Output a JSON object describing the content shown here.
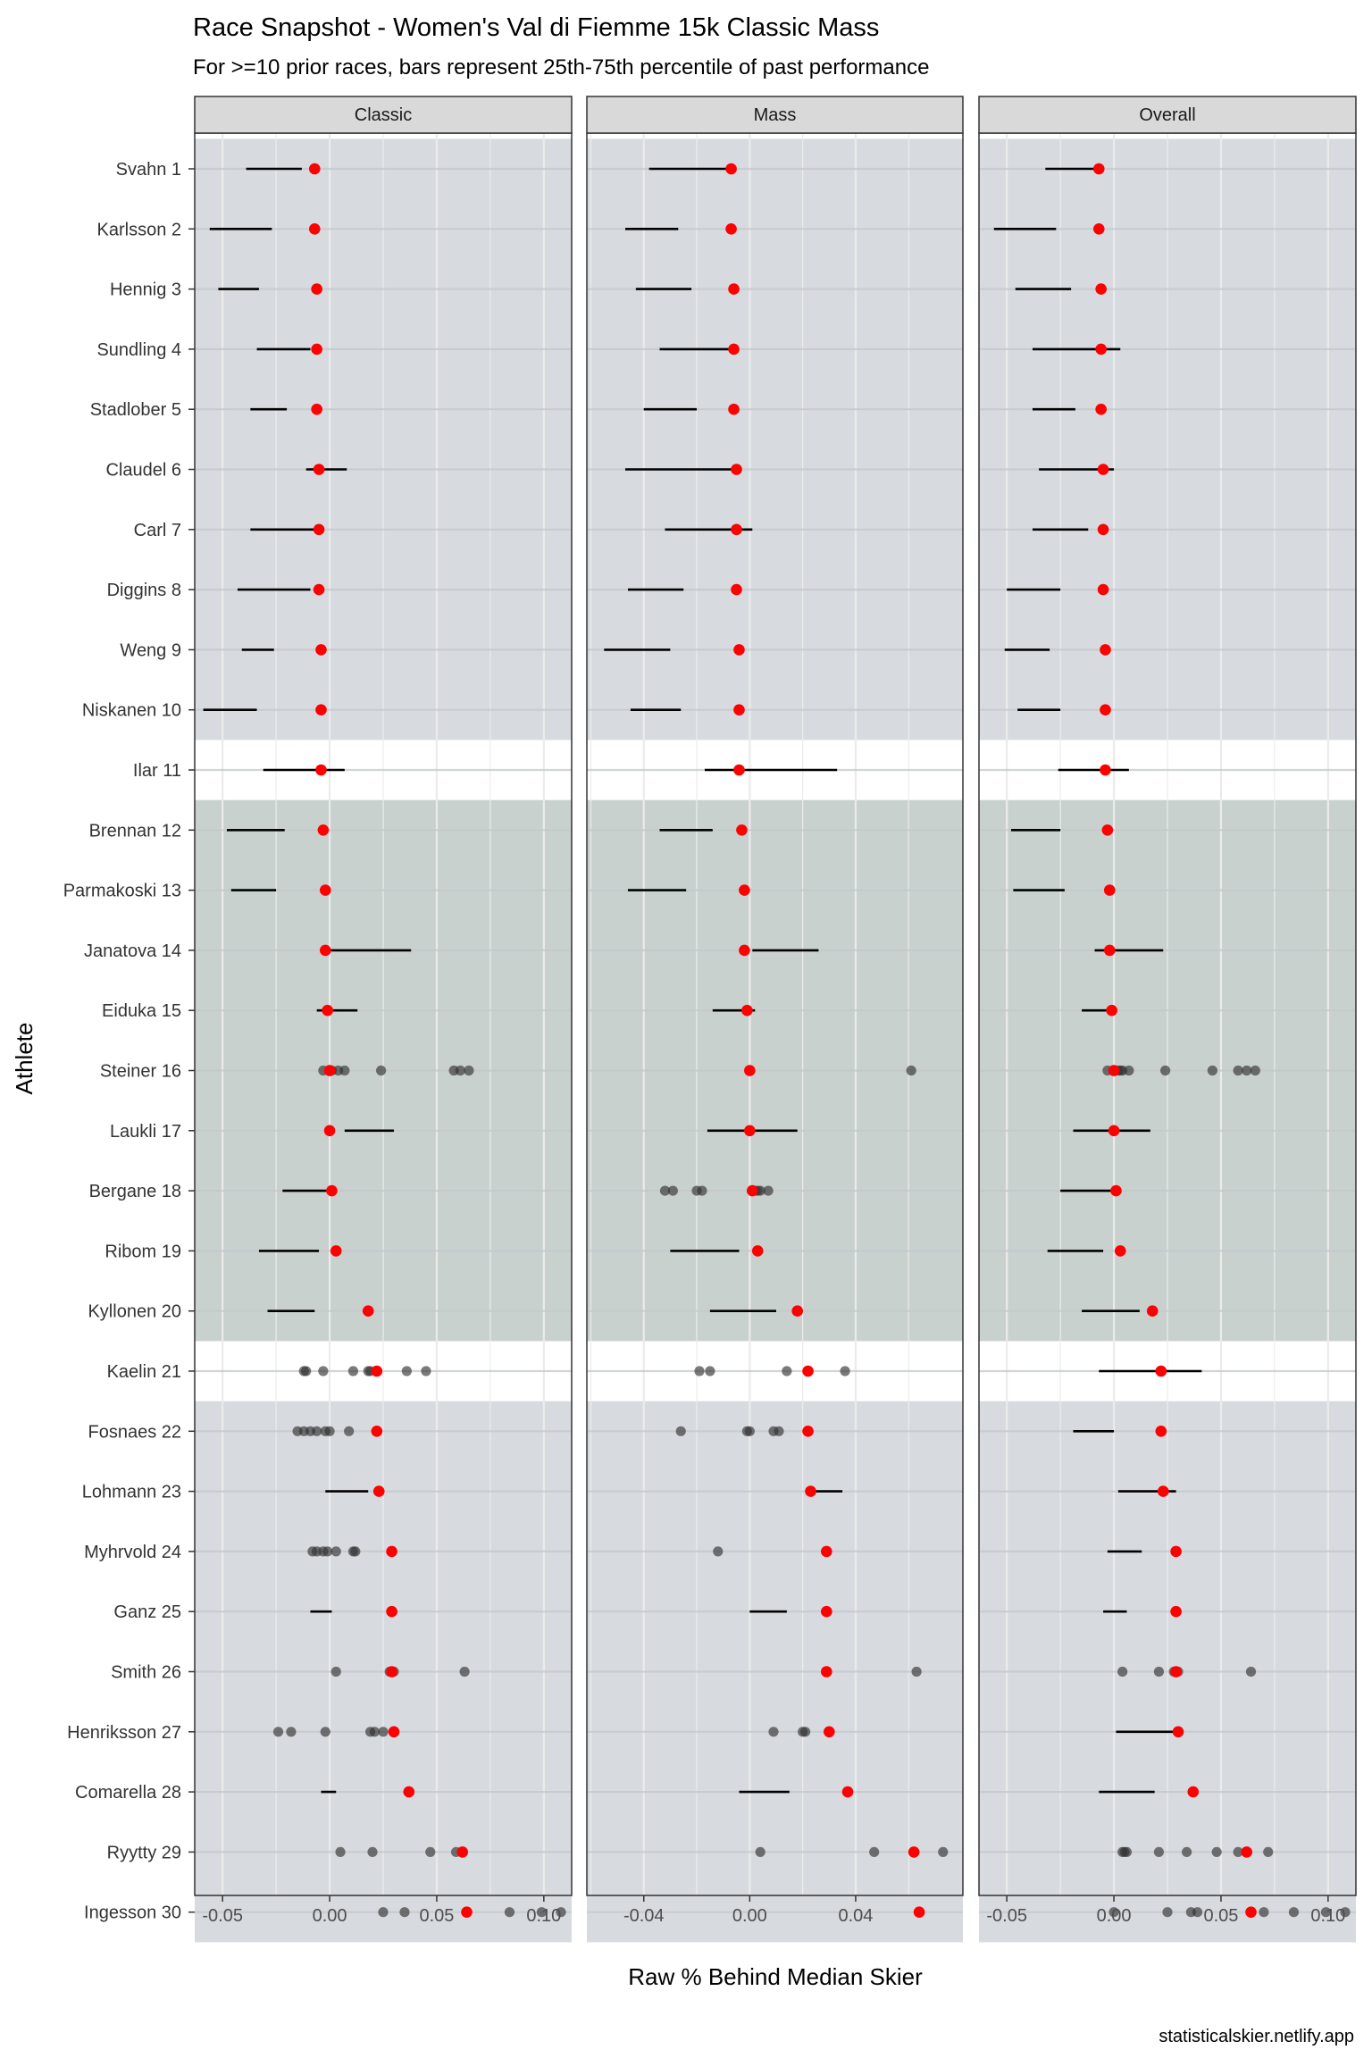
{
  "chart_data": {
    "type": "dot-range",
    "title": "Race Snapshot -  Women's Val di Fiemme 15k Classic Mass",
    "subtitle": "For >=10 prior races, bars represent 25th-75th percentile of past performance",
    "xlabel": "Raw % Behind Median Skier",
    "ylabel": "Athlete",
    "caption": "statisticalskier.netlify.app",
    "colors": {
      "current": "#ff0000",
      "past": "#333333",
      "tier1": "#d7dbe0",
      "tier2": "#c9d1cf",
      "tier3": "#d7dbe0",
      "strip": "#d9d9d9"
    },
    "athletes": [
      "Svahn 1",
      "Karlsson 2",
      "Hennig 3",
      "Sundling 4",
      "Stadlober 5",
      "Claudel 6",
      "Carl 7",
      "Diggins 8",
      "Weng 9",
      "Niskanen 10",
      "Ilar 11",
      "Brennan 12",
      "Parmakoski 13",
      "Janatova 14",
      "Eiduka 15",
      "Steiner 16",
      "Laukli 17",
      "Bergane 18",
      "Ribom 19",
      "Kyllonen 20",
      "Kaelin 21",
      "Fosnaes 22",
      "Lohmann 23",
      "Myhrvold 24",
      "Ganz 25",
      "Smith 26",
      "Henriksson 27",
      "Comarella 28",
      "Ryytty 29",
      "Ingesson 30"
    ],
    "tiers": [
      {
        "from": 1,
        "to": 10
      },
      {
        "from": 12,
        "to": 20
      },
      {
        "from": 22,
        "to": 30
      }
    ],
    "current": [
      -0.007,
      -0.007,
      -0.006,
      -0.006,
      -0.006,
      -0.005,
      -0.005,
      -0.005,
      -0.004,
      -0.004,
      -0.004,
      -0.003,
      -0.002,
      -0.002,
      -0.001,
      0.0,
      0.0,
      0.001,
      0.003,
      0.018,
      0.022,
      0.022,
      0.023,
      0.029,
      0.029,
      0.029,
      0.03,
      0.037,
      0.062,
      0.064
    ],
    "panels": [
      {
        "name": "Classic",
        "xlim": [
          -0.063,
          0.113
        ],
        "ticks": [
          -0.05,
          0.0,
          0.05,
          0.1
        ],
        "tick_labels": [
          "-0.05",
          "0.00",
          "0.05",
          "0.10"
        ],
        "ranges": [
          [
            -0.039,
            -0.013
          ],
          [
            -0.056,
            -0.027
          ],
          [
            -0.052,
            -0.033
          ],
          [
            -0.034,
            -0.009
          ],
          [
            -0.037,
            -0.02
          ],
          [
            -0.011,
            0.008
          ],
          [
            -0.037,
            -0.007
          ],
          [
            -0.043,
            -0.009
          ],
          [
            -0.041,
            -0.026
          ],
          [
            -0.059,
            -0.034
          ],
          [
            -0.031,
            0.007
          ],
          [
            -0.048,
            -0.021
          ],
          [
            -0.046,
            -0.025
          ],
          [
            -0.003,
            0.038
          ],
          [
            -0.006,
            0.013
          ],
          null,
          [
            0.007,
            0.03
          ],
          [
            -0.022,
            0.001
          ],
          [
            -0.033,
            -0.005
          ],
          [
            -0.029,
            -0.007
          ],
          null,
          null,
          [
            -0.002,
            0.018
          ],
          null,
          [
            -0.009,
            0.001
          ],
          null,
          null,
          [
            -0.004,
            0.003
          ],
          null,
          null
        ],
        "points": [
          {
            "row": 16,
            "values": [
              -0.003,
              0.001,
              0.004,
              0.007,
              0.024,
              0.058,
              0.061,
              0.065
            ]
          },
          {
            "row": 21,
            "values": [
              -0.012,
              -0.011,
              -0.003,
              0.011,
              0.018,
              0.019,
              0.036,
              0.045
            ]
          },
          {
            "row": 22,
            "values": [
              -0.015,
              -0.012,
              -0.009,
              -0.006,
              -0.002,
              0.0,
              0.009
            ]
          },
          {
            "row": 24,
            "values": [
              -0.008,
              -0.006,
              -0.003,
              -0.001,
              0.003,
              0.011,
              0.012
            ]
          },
          {
            "row": 26,
            "values": [
              0.003,
              0.028,
              0.03,
              0.063
            ]
          },
          {
            "row": 27,
            "values": [
              -0.024,
              -0.018,
              -0.002,
              0.019,
              0.021,
              0.025
            ]
          },
          {
            "row": 29,
            "values": [
              0.005,
              0.02,
              0.047,
              0.059
            ]
          },
          {
            "row": 30,
            "values": [
              0.025,
              0.035,
              0.084,
              0.099,
              0.108
            ]
          }
        ]
      },
      {
        "name": "Mass",
        "xlim": [
          -0.0615,
          0.0805
        ],
        "ticks": [
          -0.04,
          0.0,
          0.04
        ],
        "tick_labels": [
          "-0.04",
          "0.00",
          "0.04"
        ],
        "ranges": [
          [
            -0.038,
            -0.007
          ],
          [
            -0.047,
            -0.027
          ],
          [
            -0.043,
            -0.022
          ],
          [
            -0.034,
            -0.005
          ],
          [
            -0.04,
            -0.02
          ],
          [
            -0.047,
            -0.006
          ],
          [
            -0.032,
            0.001
          ],
          [
            -0.046,
            -0.025
          ],
          [
            -0.055,
            -0.03
          ],
          [
            -0.045,
            -0.026
          ],
          [
            -0.017,
            0.033
          ],
          [
            -0.034,
            -0.014
          ],
          [
            -0.046,
            -0.024
          ],
          [
            0.001,
            0.026
          ],
          [
            -0.014,
            0.002
          ],
          null,
          [
            -0.016,
            0.018
          ],
          null,
          [
            -0.03,
            -0.004
          ],
          [
            -0.015,
            0.01
          ],
          null,
          null,
          [
            0.023,
            0.035
          ],
          null,
          [
            0.0,
            0.014
          ],
          null,
          null,
          [
            -0.004,
            0.015
          ],
          null,
          null
        ],
        "points": [
          {
            "row": 16,
            "values": [
              0.061
            ]
          },
          {
            "row": 18,
            "values": [
              -0.032,
              -0.029,
              -0.02,
              -0.018,
              0.002,
              0.003,
              0.004,
              0.007
            ]
          },
          {
            "row": 21,
            "values": [
              -0.019,
              -0.015,
              0.014,
              0.036
            ]
          },
          {
            "row": 22,
            "values": [
              -0.026,
              -0.001,
              0.0,
              0.009,
              0.011
            ]
          },
          {
            "row": 24,
            "values": [
              -0.012
            ]
          },
          {
            "row": 26,
            "values": [
              0.063
            ]
          },
          {
            "row": 27,
            "values": [
              0.009,
              0.02,
              0.021
            ]
          },
          {
            "row": 29,
            "values": [
              0.004,
              0.047,
              0.073
            ]
          }
        ]
      },
      {
        "name": "Overall",
        "xlim": [
          -0.063,
          0.113
        ],
        "ticks": [
          -0.05,
          0.0,
          0.05,
          0.1
        ],
        "tick_labels": [
          "-0.05",
          "0.00",
          "0.05",
          "0.10"
        ],
        "ranges": [
          [
            -0.032,
            -0.006
          ],
          [
            -0.056,
            -0.027
          ],
          [
            -0.046,
            -0.02
          ],
          [
            -0.038,
            0.003
          ],
          [
            -0.038,
            -0.018
          ],
          [
            -0.035,
            0.0
          ],
          [
            -0.038,
            -0.012
          ],
          [
            -0.05,
            -0.025
          ],
          [
            -0.051,
            -0.03
          ],
          [
            -0.045,
            -0.025
          ],
          [
            -0.026,
            0.007
          ],
          [
            -0.048,
            -0.025
          ],
          [
            -0.047,
            -0.023
          ],
          [
            -0.009,
            0.023
          ],
          [
            -0.015,
            0.0
          ],
          null,
          [
            -0.019,
            0.017
          ],
          [
            -0.025,
            0.0
          ],
          [
            -0.031,
            -0.005
          ],
          [
            -0.015,
            0.012
          ],
          [
            -0.007,
            0.041
          ],
          [
            -0.019,
            0.0
          ],
          [
            0.002,
            0.029
          ],
          [
            -0.003,
            0.013
          ],
          [
            -0.005,
            0.006
          ],
          null,
          [
            0.001,
            0.03
          ],
          [
            -0.007,
            0.019
          ],
          null,
          null
        ],
        "points": [
          {
            "row": 16,
            "values": [
              -0.003,
              0.0,
              0.002,
              0.003,
              0.004,
              0.007,
              0.024,
              0.046,
              0.058,
              0.062,
              0.066
            ]
          },
          {
            "row": 26,
            "values": [
              0.004,
              0.021,
              0.028,
              0.03,
              0.064
            ]
          },
          {
            "row": 29,
            "values": [
              0.004,
              0.005,
              0.006,
              0.021,
              0.034,
              0.048,
              0.058,
              0.072
            ]
          },
          {
            "row": 30,
            "values": [
              0.0,
              0.025,
              0.036,
              0.039,
              0.07,
              0.084,
              0.099,
              0.108
            ]
          }
        ]
      }
    ]
  }
}
